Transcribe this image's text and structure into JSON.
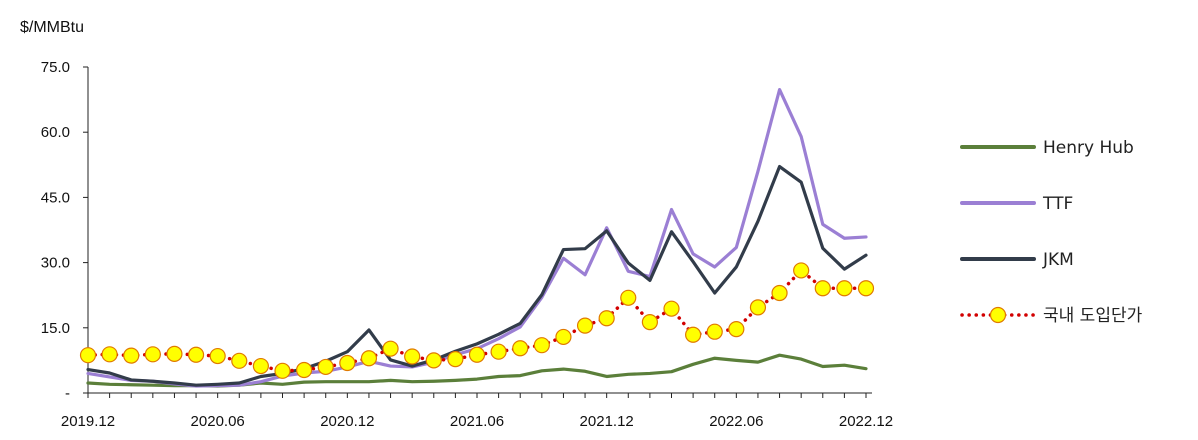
{
  "chart_data": {
    "type": "line",
    "unit": "$/MMBtu",
    "x": [
      "2019.12",
      "2020.01",
      "2020.02",
      "2020.03",
      "2020.04",
      "2020.05",
      "2020.06",
      "2020.07",
      "2020.08",
      "2020.09",
      "2020.10",
      "2020.11",
      "2020.12",
      "2021.01",
      "2021.02",
      "2021.03",
      "2021.04",
      "2021.05",
      "2021.06",
      "2021.07",
      "2021.08",
      "2021.09",
      "2021.10",
      "2021.11",
      "2021.12",
      "2022.01",
      "2022.02",
      "2022.03",
      "2022.04",
      "2022.05",
      "2022.06",
      "2022.07",
      "2022.08",
      "2022.09",
      "2022.10",
      "2022.11",
      "2022.12"
    ],
    "x_tick_labels": [
      "2019.12",
      "2020.06",
      "2020.12",
      "2021.06",
      "2021.12",
      "2022.06",
      "2022.12"
    ],
    "y_tick_labels": [
      "-",
      "15.0",
      "30.0",
      "45.0",
      "60.0",
      "75.0"
    ],
    "ylim": [
      0,
      75
    ],
    "grid": false,
    "legend_position": "right",
    "series": [
      {
        "name": "Henry Hub",
        "color": "#5b7f3a",
        "style": "solid",
        "values": [
          2.3,
          2.0,
          1.9,
          1.8,
          1.7,
          1.7,
          1.6,
          1.8,
          2.3,
          2.0,
          2.5,
          2.6,
          2.6,
          2.6,
          2.9,
          2.6,
          2.7,
          2.9,
          3.2,
          3.8,
          4.0,
          5.1,
          5.5,
          5.0,
          3.8,
          4.3,
          4.5,
          4.9,
          6.6,
          8.0,
          7.5,
          7.1,
          8.7,
          7.8,
          6.1,
          6.4,
          5.6
        ]
      },
      {
        "name": "TTF",
        "color": "#9b7fd4",
        "style": "solid",
        "values": [
          4.5,
          3.7,
          2.9,
          2.7,
          2.1,
          1.6,
          1.7,
          1.8,
          2.6,
          3.9,
          4.6,
          5.0,
          6.0,
          7.3,
          6.2,
          6.0,
          7.1,
          8.8,
          10.2,
          12.5,
          15.2,
          22.0,
          31.0,
          27.2,
          38.0,
          28.0,
          26.8,
          42.2,
          32.0,
          29.0,
          33.5,
          51.0,
          69.8,
          59.0,
          38.8,
          35.6,
          35.9
        ]
      },
      {
        "name": "JKM",
        "color": "#323c4a",
        "style": "solid",
        "values": [
          5.4,
          4.6,
          3.0,
          2.7,
          2.3,
          1.8,
          2.0,
          2.3,
          3.8,
          4.5,
          5.6,
          7.3,
          9.5,
          14.5,
          7.6,
          6.2,
          7.6,
          9.6,
          11.3,
          13.5,
          16.0,
          22.6,
          33.0,
          33.2,
          37.3,
          29.9,
          25.9,
          37.1,
          30.2,
          23.0,
          29.0,
          39.5,
          52.1,
          48.5,
          33.3,
          28.5,
          31.7
        ]
      },
      {
        "name": "국내 도입단가",
        "color": "#d20000",
        "marker_fill": "#ffff00",
        "style": "dotted-with-markers",
        "values": [
          8.7,
          8.9,
          8.6,
          8.9,
          9.0,
          8.8,
          8.5,
          7.4,
          6.2,
          5.1,
          5.3,
          6.0,
          6.9,
          8.0,
          10.2,
          8.4,
          7.5,
          7.8,
          8.8,
          9.5,
          10.3,
          11.0,
          12.9,
          15.5,
          17.2,
          21.9,
          16.3,
          19.4,
          13.4,
          14.1,
          14.7,
          19.7,
          23.0,
          28.2,
          24.1,
          24.1,
          24.1
        ]
      }
    ]
  }
}
